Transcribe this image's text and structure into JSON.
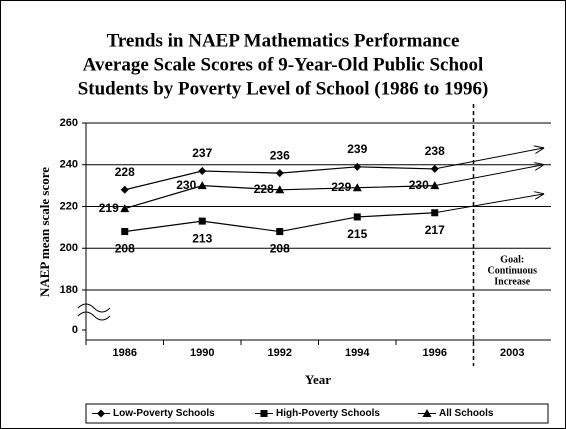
{
  "chart_data": {
    "type": "line",
    "title": [
      "Trends in NAEP Mathematics Performance",
      "Average Scale Scores of 9-Year-Old Public School",
      "Students by Poverty Level of School (1986 to 1996)"
    ],
    "categories": [
      "1986",
      "1990",
      "1992",
      "1994",
      "1996",
      "2003"
    ],
    "x_label": "Year",
    "y_label": "NAEP mean scale score",
    "ylim": [
      180,
      260
    ],
    "yticks": [
      0,
      180,
      200,
      220,
      240,
      260
    ],
    "axis_break": true,
    "grid": true,
    "legend": "bottom",
    "annotation": [
      "Goal:",
      "Continuous",
      "Increase"
    ],
    "series": [
      {
        "name": "Low-Poverty Schools",
        "marker": "diamond",
        "color": "#000000",
        "values": [
          228,
          237,
          236,
          239,
          238,
          248
        ],
        "value_labels": [
          "228",
          "237",
          "236",
          "239",
          "238",
          null
        ],
        "label_side": "above"
      },
      {
        "name": "High-Poverty Schools",
        "marker": "square",
        "color": "#000000",
        "values": [
          208,
          213,
          208,
          215,
          217,
          226
        ],
        "value_labels": [
          "208",
          "213",
          "208",
          "215",
          "217",
          null
        ],
        "label_side": "below"
      },
      {
        "name": "All Schools",
        "marker": "triangle",
        "color": "#000000",
        "values": [
          219,
          230,
          228,
          229,
          230,
          240
        ],
        "value_labels": [
          "219",
          "230",
          "228",
          "229",
          "230",
          null
        ],
        "label_side": "left"
      }
    ]
  }
}
